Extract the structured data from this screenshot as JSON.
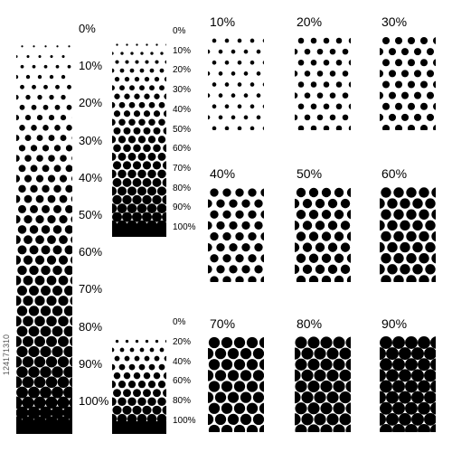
{
  "colors": {
    "ink": "#000000",
    "paper": "#ffffff",
    "id_text": "#555555"
  },
  "stock_id": "124171310",
  "long_gradient": {
    "labels": [
      "0%",
      "10%",
      "20%",
      "30%",
      "40%",
      "50%",
      "60%",
      "70%",
      "80%",
      "90%",
      "100%"
    ]
  },
  "medium_gradient": {
    "labels": [
      "0%",
      "10%",
      "20%",
      "30%",
      "40%",
      "50%",
      "60%",
      "70%",
      "80%",
      "90%",
      "100%"
    ]
  },
  "short_gradient": {
    "labels": [
      "0%",
      "20%",
      "40%",
      "60%",
      "80%",
      "100%"
    ]
  },
  "swatches": [
    {
      "label": "10%",
      "density": 0.1
    },
    {
      "label": "20%",
      "density": 0.2
    },
    {
      "label": "30%",
      "density": 0.3
    },
    {
      "label": "40%",
      "density": 0.4
    },
    {
      "label": "50%",
      "density": 0.5
    },
    {
      "label": "60%",
      "density": 0.6
    },
    {
      "label": "70%",
      "density": 0.7
    },
    {
      "label": "80%",
      "density": 0.8
    },
    {
      "label": "90%",
      "density": 0.9
    }
  ]
}
